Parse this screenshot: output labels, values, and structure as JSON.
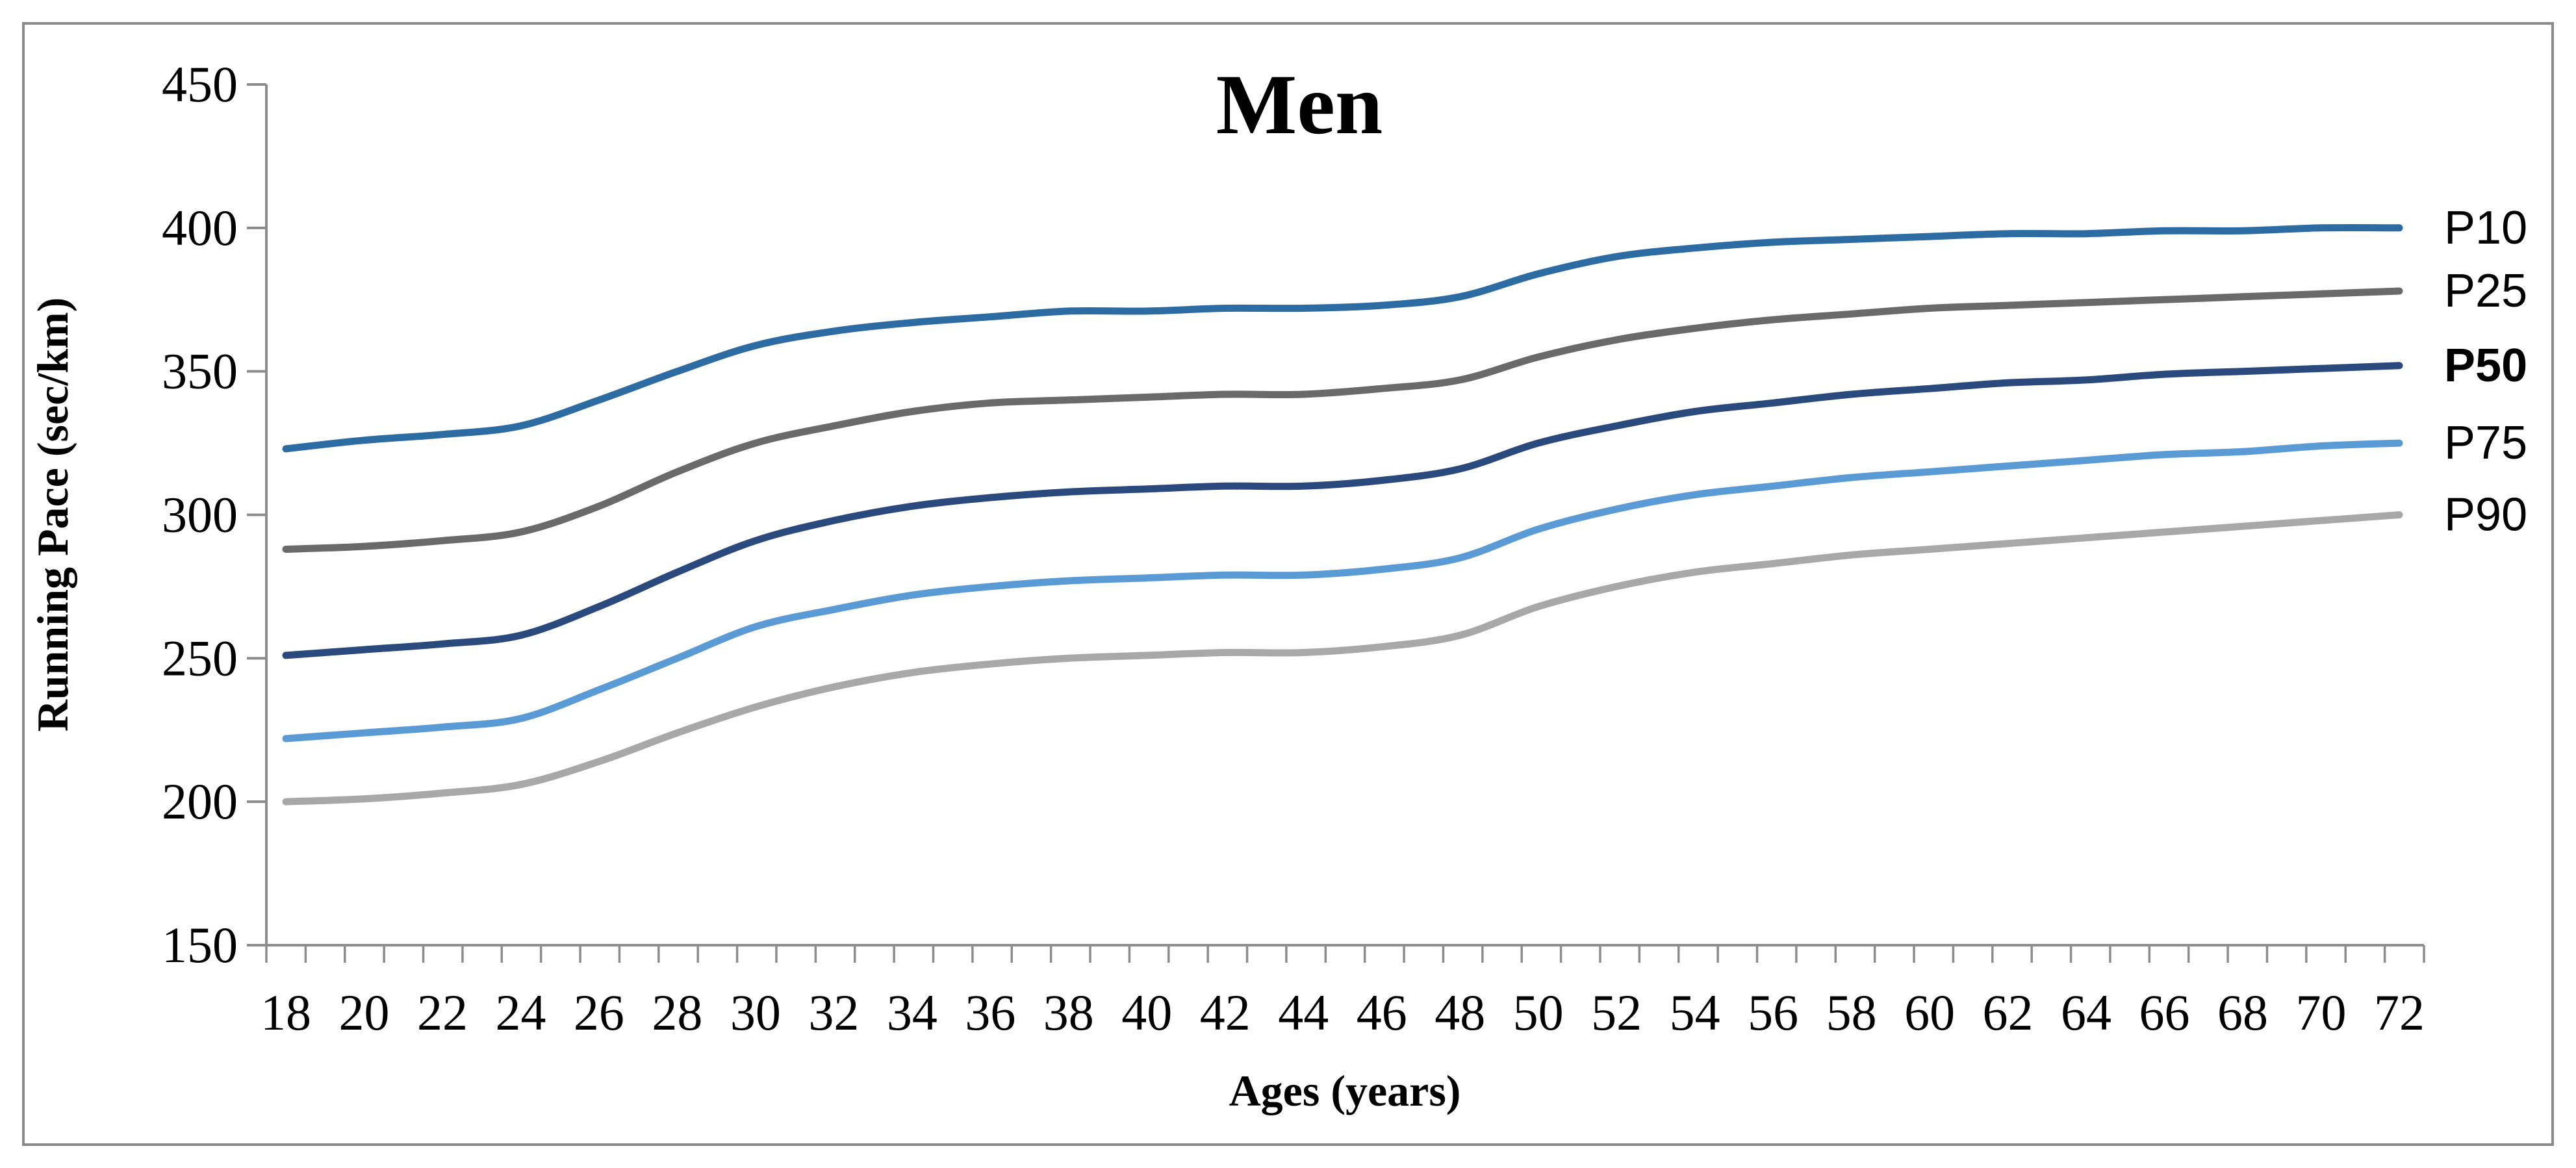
{
  "chart_data": {
    "type": "line",
    "title": "Men",
    "xlabel": "Ages (years)",
    "ylabel": "Running Pace (sec/km)",
    "x": [
      18,
      20,
      22,
      24,
      26,
      28,
      30,
      32,
      34,
      36,
      38,
      40,
      42,
      44,
      46,
      48,
      50,
      52,
      54,
      56,
      58,
      60,
      62,
      64,
      66,
      68,
      70,
      72
    ],
    "x_tick_labels": [
      "18",
      "20",
      "22",
      "24",
      "26",
      "28",
      "30",
      "32",
      "34",
      "36",
      "38",
      "40",
      "42",
      "44",
      "46",
      "48",
      "50",
      "52",
      "54",
      "56",
      "58",
      "60",
      "62",
      "64",
      "66",
      "68",
      "70",
      "72"
    ],
    "x_minor_tick_every_years": 1,
    "xlim": [
      17.5,
      72.5
    ],
    "ylim": [
      150,
      450
    ],
    "yticks": [
      150,
      200,
      250,
      300,
      350,
      400,
      450
    ],
    "grid": false,
    "legend_position": "right-end-of-lines",
    "axis_color": "#8C8C8C",
    "border_color": "#8A8A8A",
    "line_width": 11,
    "series": [
      {
        "name": "P10",
        "color": "#2D6BA3",
        "label_bold": false,
        "values": [
          323,
          326,
          328,
          331,
          340,
          350,
          359,
          364,
          367,
          369,
          371,
          371,
          372,
          372,
          373,
          376,
          384,
          390,
          393,
          395,
          396,
          397,
          398,
          398,
          399,
          399,
          400,
          400
        ]
      },
      {
        "name": "P25",
        "color": "#6A6A6A",
        "label_bold": false,
        "values": [
          288,
          289,
          291,
          294,
          303,
          315,
          325,
          331,
          336,
          339,
          340,
          341,
          342,
          342,
          344,
          347,
          355,
          361,
          365,
          368,
          370,
          372,
          373,
          374,
          375,
          376,
          377,
          378
        ]
      },
      {
        "name": "P50",
        "color": "#2A4A7D",
        "label_bold": true,
        "values": [
          251,
          253,
          255,
          258,
          268,
          280,
          291,
          298,
          303,
          306,
          308,
          309,
          310,
          310,
          312,
          316,
          325,
          331,
          336,
          339,
          342,
          344,
          346,
          347,
          349,
          350,
          351,
          352
        ]
      },
      {
        "name": "P75",
        "color": "#5B9BD5",
        "label_bold": false,
        "values": [
          222,
          224,
          226,
          229,
          239,
          250,
          261,
          267,
          272,
          275,
          277,
          278,
          279,
          279,
          281,
          285,
          295,
          302,
          307,
          310,
          313,
          315,
          317,
          319,
          321,
          322,
          324,
          325
        ]
      },
      {
        "name": "P90",
        "color": "#A8A8A8",
        "label_bold": false,
        "values": [
          200,
          201,
          203,
          206,
          214,
          224,
          233,
          240,
          245,
          248,
          250,
          251,
          252,
          252,
          254,
          258,
          268,
          275,
          280,
          283,
          286,
          288,
          290,
          292,
          294,
          296,
          298,
          300
        ]
      }
    ]
  }
}
